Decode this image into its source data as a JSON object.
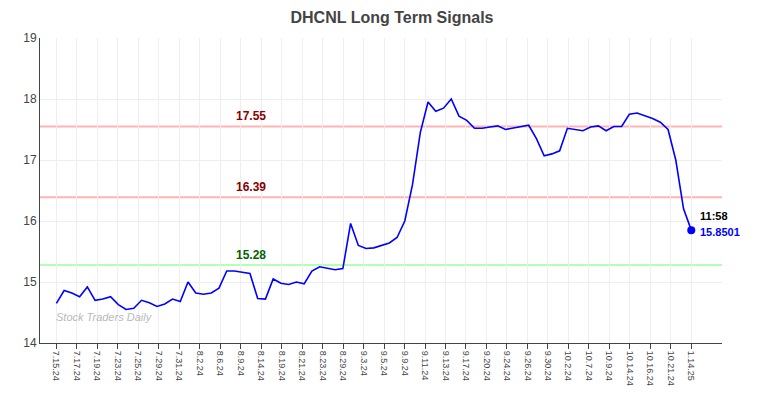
{
  "chart_data": {
    "type": "line",
    "title": "DHCNL Long Term Signals",
    "watermark": "Stock Traders Daily",
    "color": "blue",
    "values": [
      14.65,
      14.86,
      14.82,
      14.76,
      14.92,
      14.7,
      14.72,
      14.76,
      14.63,
      14.55,
      14.57,
      14.7,
      14.66,
      14.6,
      14.64,
      14.72,
      14.68,
      15.0,
      14.82,
      14.8,
      14.82,
      14.9,
      15.18,
      15.18,
      15.16,
      15.14,
      14.73,
      14.72,
      15.05,
      14.98,
      14.96,
      15.0,
      14.97,
      15.18,
      15.25,
      15.23,
      15.2,
      15.22,
      15.96,
      15.6,
      15.55,
      15.56,
      15.6,
      15.64,
      15.73,
      16.0,
      16.6,
      17.45,
      17.95,
      17.8,
      17.85,
      18.0,
      17.72,
      17.65,
      17.52,
      17.52,
      17.54,
      17.56,
      17.5,
      17.52,
      17.55,
      17.57,
      17.35,
      17.07,
      17.1,
      17.15,
      17.52,
      17.5,
      17.48,
      17.54,
      17.56,
      17.48,
      17.55,
      17.55,
      17.75,
      17.77,
      17.73,
      17.68,
      17.62,
      17.5,
      17.0,
      16.2,
      15.8501
    ],
    "xlim": [
      -0.8,
      32.5
    ],
    "xticks": [
      {
        "value": 0,
        "label": "7.15.24"
      },
      {
        "value": 1,
        "label": "7.17.24"
      },
      {
        "value": 2,
        "label": "7.19.24"
      },
      {
        "value": 3,
        "label": "7.23.24"
      },
      {
        "value": 4,
        "label": "7.25.24"
      },
      {
        "value": 5,
        "label": "7.29.24"
      },
      {
        "value": 6,
        "label": "7.31.24"
      },
      {
        "value": 7,
        "label": "8.2.24"
      },
      {
        "value": 8,
        "label": "8.6.24"
      },
      {
        "value": 9,
        "label": "8.9.24"
      },
      {
        "value": 10,
        "label": "8.14.24"
      },
      {
        "value": 11,
        "label": "8.19.24"
      },
      {
        "value": 12,
        "label": "8.21.24"
      },
      {
        "value": 13,
        "label": "8.23.24"
      },
      {
        "value": 14,
        "label": "8.29.24"
      },
      {
        "value": 15,
        "label": "9.3.24"
      },
      {
        "value": 16,
        "label": "9.5.24"
      },
      {
        "value": 17,
        "label": "9.9.24"
      },
      {
        "value": 18,
        "label": "9.11.24"
      },
      {
        "value": 19,
        "label": "9.13.24"
      },
      {
        "value": 20,
        "label": "9.17.24"
      },
      {
        "value": 21,
        "label": "9.20.24"
      },
      {
        "value": 22,
        "label": "9.24.24"
      },
      {
        "value": 23,
        "label": "9.26.24"
      },
      {
        "value": 24,
        "label": "9.30.24"
      },
      {
        "value": 25,
        "label": "10.2.24"
      },
      {
        "value": 26,
        "label": "10.7.24"
      },
      {
        "value": 27,
        "label": "10.9.24"
      },
      {
        "value": 28,
        "label": "10.14.24"
      },
      {
        "value": 29,
        "label": "10.16.24"
      },
      {
        "value": 30,
        "label": "10.21.24"
      },
      {
        "value": 31,
        "label": "1.14.25"
      }
    ],
    "ylim": [
      14,
      19
    ],
    "yticks": [
      14,
      15,
      16,
      17,
      18,
      19
    ],
    "grid": true,
    "hlines": [
      {
        "value": 17.55,
        "color": "#ffb3b3",
        "label": "17.55",
        "label_color": "#8b0000"
      },
      {
        "value": 16.39,
        "color": "#ffb3b3",
        "label": "16.39",
        "label_color": "#8b0000"
      },
      {
        "value": 15.28,
        "color": "#b3ffb3",
        "label": "15.28",
        "label_color": "#006400"
      }
    ],
    "last_point": {
      "value": 15.8501,
      "label": "11:58",
      "value_label": "15.8501",
      "color": "blue"
    }
  }
}
